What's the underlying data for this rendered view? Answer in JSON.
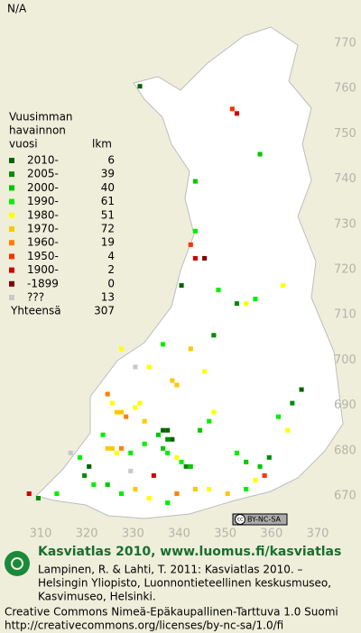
{
  "header": {
    "title": "N/A"
  },
  "map": {
    "xlim": [
      310,
      370
    ],
    "ylim": [
      670,
      770
    ],
    "xticks": [
      310,
      320,
      330,
      340,
      350,
      360,
      370
    ],
    "yticks": [
      670,
      680,
      690,
      700,
      710,
      720,
      730,
      740,
      750,
      760,
      770
    ],
    "squares": [
      {
        "x": 331,
        "y": 760,
        "period": 0
      },
      {
        "x": 351,
        "y": 755,
        "period": 7
      },
      {
        "x": 352,
        "y": 754,
        "period": 8
      },
      {
        "x": 357,
        "y": 745,
        "period": 2
      },
      {
        "x": 343,
        "y": 739,
        "period": 2
      },
      {
        "x": 343,
        "y": 728,
        "period": 3
      },
      {
        "x": 342,
        "y": 725,
        "period": 7
      },
      {
        "x": 343,
        "y": 722,
        "period": 8
      },
      {
        "x": 345,
        "y": 722,
        "period": 9
      },
      {
        "x": 340,
        "y": 716,
        "period": 0
      },
      {
        "x": 348,
        "y": 715,
        "period": 3
      },
      {
        "x": 362,
        "y": 716,
        "period": 4
      },
      {
        "x": 352,
        "y": 712,
        "period": 1
      },
      {
        "x": 354,
        "y": 712,
        "period": 4
      },
      {
        "x": 356,
        "y": 713,
        "period": 3
      },
      {
        "x": 347,
        "y": 705,
        "period": 1
      },
      {
        "x": 336,
        "y": 703,
        "period": 3
      },
      {
        "x": 342,
        "y": 702,
        "period": 5
      },
      {
        "x": 327,
        "y": 702,
        "period": 4
      },
      {
        "x": 333,
        "y": 698,
        "period": 4
      },
      {
        "x": 338,
        "y": 695,
        "period": 5
      },
      {
        "x": 339,
        "y": 694,
        "period": 5
      },
      {
        "x": 324,
        "y": 692,
        "period": 6
      },
      {
        "x": 325,
        "y": 690,
        "period": 4
      },
      {
        "x": 326,
        "y": 688,
        "period": 5
      },
      {
        "x": 327,
        "y": 688,
        "period": 5
      },
      {
        "x": 328,
        "y": 687,
        "period": 6
      },
      {
        "x": 330,
        "y": 689,
        "period": 4
      },
      {
        "x": 331,
        "y": 690,
        "period": 4
      },
      {
        "x": 332,
        "y": 686,
        "period": 5
      },
      {
        "x": 323,
        "y": 683,
        "period": 3
      },
      {
        "x": 324,
        "y": 680,
        "period": 5
      },
      {
        "x": 325,
        "y": 680,
        "period": 5
      },
      {
        "x": 326,
        "y": 679,
        "period": 4
      },
      {
        "x": 327,
        "y": 680,
        "period": 6
      },
      {
        "x": 329,
        "y": 679,
        "period": 3
      },
      {
        "x": 332,
        "y": 681,
        "period": 3
      },
      {
        "x": 335,
        "y": 683,
        "period": 2
      },
      {
        "x": 336,
        "y": 684,
        "period": 0
      },
      {
        "x": 337,
        "y": 684,
        "period": 0
      },
      {
        "x": 337,
        "y": 682,
        "period": 1
      },
      {
        "x": 338,
        "y": 682,
        "period": 0
      },
      {
        "x": 336,
        "y": 680,
        "period": 2
      },
      {
        "x": 337,
        "y": 679,
        "period": 3
      },
      {
        "x": 339,
        "y": 678,
        "period": 4
      },
      {
        "x": 340,
        "y": 677,
        "period": 3
      },
      {
        "x": 341,
        "y": 676,
        "period": 1
      },
      {
        "x": 342,
        "y": 676,
        "period": 2
      },
      {
        "x": 344,
        "y": 684,
        "period": 2
      },
      {
        "x": 346,
        "y": 686,
        "period": 3
      },
      {
        "x": 347,
        "y": 688,
        "period": 4
      },
      {
        "x": 352,
        "y": 679,
        "period": 3
      },
      {
        "x": 354,
        "y": 677,
        "period": 2
      },
      {
        "x": 357,
        "y": 676,
        "period": 2
      },
      {
        "x": 359,
        "y": 678,
        "period": 1
      },
      {
        "x": 363,
        "y": 684,
        "period": 4
      },
      {
        "x": 361,
        "y": 687,
        "period": 3
      },
      {
        "x": 364,
        "y": 690,
        "period": 1
      },
      {
        "x": 366,
        "y": 693,
        "period": 0
      },
      {
        "x": 316,
        "y": 679,
        "period": 10
      },
      {
        "x": 318,
        "y": 678,
        "period": 3
      },
      {
        "x": 320,
        "y": 676,
        "period": 0
      },
      {
        "x": 319,
        "y": 674,
        "period": 1
      },
      {
        "x": 321,
        "y": 672,
        "period": 3
      },
      {
        "x": 324,
        "y": 672,
        "period": 2
      },
      {
        "x": 327,
        "y": 670,
        "period": 3
      },
      {
        "x": 330,
        "y": 671,
        "period": 5
      },
      {
        "x": 333,
        "y": 669,
        "period": 4
      },
      {
        "x": 337,
        "y": 668,
        "period": 3
      },
      {
        "x": 339,
        "y": 670,
        "period": 6
      },
      {
        "x": 343,
        "y": 671,
        "period": 5
      },
      {
        "x": 346,
        "y": 671,
        "period": 4
      },
      {
        "x": 350,
        "y": 670,
        "period": 5
      },
      {
        "x": 354,
        "y": 671,
        "period": 3
      },
      {
        "x": 356,
        "y": 673,
        "period": 4
      },
      {
        "x": 358,
        "y": 674,
        "period": 7
      },
      {
        "x": 307,
        "y": 670,
        "period": 8
      },
      {
        "x": 309,
        "y": 669,
        "period": 1
      },
      {
        "x": 313,
        "y": 670,
        "period": 3
      },
      {
        "x": 330,
        "y": 698,
        "period": 10
      },
      {
        "x": 345,
        "y": 697,
        "period": 4
      },
      {
        "x": 329,
        "y": 675,
        "period": 10
      },
      {
        "x": 334,
        "y": 674,
        "period": 8
      }
    ]
  },
  "legend": {
    "title": [
      "Vuusimman",
      "havainnon",
      "vuosi"
    ],
    "count_label": "lkm",
    "items": [
      {
        "label": "2010-",
        "color": "#006400",
        "count": 6
      },
      {
        "label": "2005-",
        "color": "#008c00",
        "count": 39
      },
      {
        "label": "2000-",
        "color": "#00c800",
        "count": 40
      },
      {
        "label": "1990-",
        "color": "#00f000",
        "count": 61
      },
      {
        "label": "1980-",
        "color": "#ffff00",
        "count": 51
      },
      {
        "label": "1970-",
        "color": "#ffc800",
        "count": 72
      },
      {
        "label": "1960-",
        "color": "#ff8000",
        "count": 19
      },
      {
        "label": "1950-",
        "color": "#ff3000",
        "count": 4
      },
      {
        "label": "1900-",
        "color": "#d00000",
        "count": 2
      },
      {
        "label": "-1899",
        "color": "#800000",
        "count": 0
      },
      {
        "label": "???",
        "color": "#c8c8c8",
        "count": 13
      }
    ],
    "total_label": "Yhteensä",
    "total": 307
  },
  "badge": {
    "icon": "cc",
    "text": "BY-NC-SA"
  },
  "footer": {
    "title": "Kasviatlas 2010, www.luomus.fi/kasviatlas",
    "citation": [
      "Lampinen, R. & Lahti, T. 2011: Kasviatlas 2010. –",
      "Helsingin Yliopisto, Luonnontieteellinen keskusmuseo,",
      "Kasvimuseo, Helsinki."
    ],
    "license": "Creative Commons Nimeä-Epäkaupallinen-Tarttuva 1.0 Suomi",
    "url": "http://creativecommons.org/licenses/by-nc-sa/1.0/fi"
  }
}
